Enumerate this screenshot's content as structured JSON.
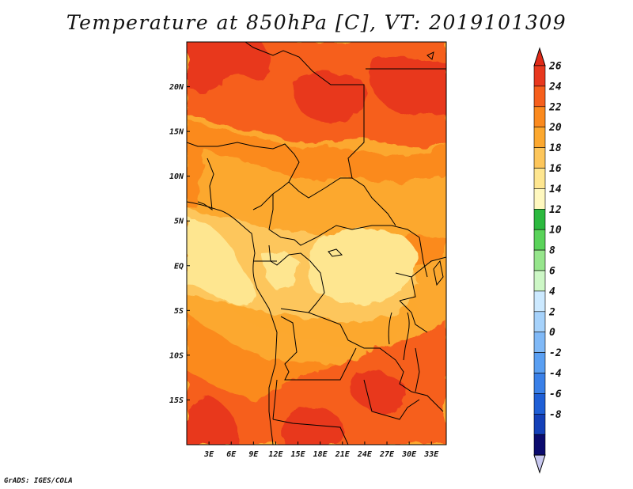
{
  "title": "Temperature at 850hPa [C], VT: 2019101309",
  "credit": "GrADS: IGES/COLA",
  "map": {
    "region": "Central Africa",
    "variable": "Temperature at 850hPa",
    "units": "C",
    "valid_time": "2019101309",
    "lon_range": [
      0,
      35
    ],
    "lat_range": [
      -20,
      25
    ],
    "x_ticks": [
      {
        "value": 3,
        "label": "3E"
      },
      {
        "value": 6,
        "label": "6E"
      },
      {
        "value": 9,
        "label": "9E"
      },
      {
        "value": 12,
        "label": "12E"
      },
      {
        "value": 15,
        "label": "15E"
      },
      {
        "value": 18,
        "label": "18E"
      },
      {
        "value": 21,
        "label": "21E"
      },
      {
        "value": 24,
        "label": "24E"
      },
      {
        "value": 27,
        "label": "27E"
      },
      {
        "value": 30,
        "label": "30E"
      },
      {
        "value": 33,
        "label": "33E"
      }
    ],
    "y_ticks": [
      {
        "value": 20,
        "label": "20N"
      },
      {
        "value": 15,
        "label": "15N"
      },
      {
        "value": 10,
        "label": "10N"
      },
      {
        "value": 5,
        "label": "5N"
      },
      {
        "value": 0,
        "label": "EQ"
      },
      {
        "value": -5,
        "label": "5S"
      },
      {
        "value": -10,
        "label": "10S"
      },
      {
        "value": -15,
        "label": "15S"
      }
    ]
  },
  "colorbar": {
    "levels": [
      {
        "label": "26",
        "color": "#e8381e"
      },
      {
        "label": "24",
        "color": "#f65f1c"
      },
      {
        "label": "22",
        "color": "#fb8a1e"
      },
      {
        "label": "20",
        "color": "#fca82f"
      },
      {
        "label": "18",
        "color": "#fdc65b"
      },
      {
        "label": "16",
        "color": "#fee690"
      },
      {
        "label": "14",
        "color": "#fff8bf"
      },
      {
        "label": "12",
        "color": "#2cb93f"
      },
      {
        "label": "10",
        "color": "#5ad35a"
      },
      {
        "label": "8",
        "color": "#96e58c"
      },
      {
        "label": "6",
        "color": "#cdf7c6"
      },
      {
        "label": "4",
        "color": "#cce9ff"
      },
      {
        "label": "2",
        "color": "#a6d2fb"
      },
      {
        "label": "0",
        "color": "#80b9f7"
      },
      {
        "label": "-2",
        "color": "#5a9ff2"
      },
      {
        "label": "-4",
        "color": "#3a80e8"
      },
      {
        "label": "-6",
        "color": "#1f5fd6"
      },
      {
        "label": "-8",
        "color": "#1440b8"
      }
    ],
    "over_color": "#e02a18",
    "under_color": "#c8c8f0",
    "bottom_color": "#0b0b6e"
  },
  "colors": {
    "hot": "#e8381e",
    "c24": "#f65f1c",
    "c22": "#fb8a1e",
    "c20": "#fca82f",
    "c18": "#fdc65b",
    "c16": "#fee690",
    "c14": "#fff8bf",
    "border": "#000000"
  }
}
